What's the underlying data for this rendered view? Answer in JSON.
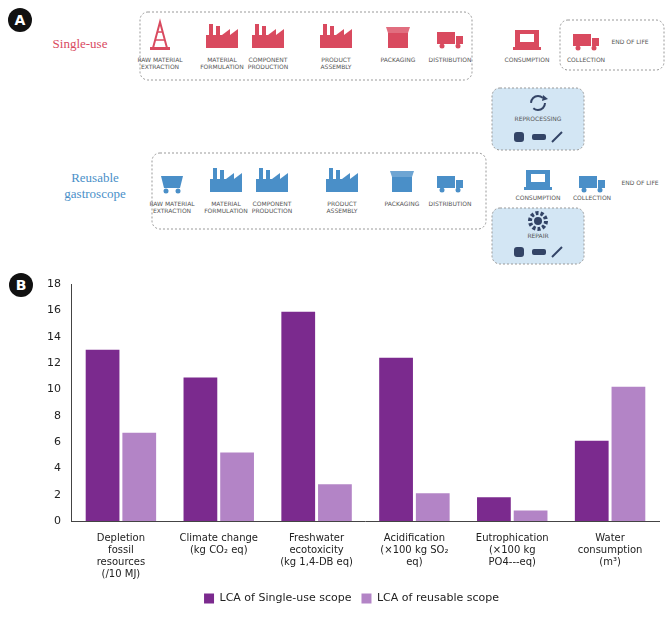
{
  "panel_labels": [
    "A",
    "B"
  ],
  "diagram": {
    "single_use": {
      "label": "Single-use",
      "stages": [
        "RAW MATERIAL EXTRACTION",
        "MATERIAL FORMULATION",
        "COMPONENT PRODUCTION",
        "PRODUCT ASSEMBLY",
        "PACKAGING",
        "DISTRIBUTION"
      ],
      "consumption": "CONSUMPTION",
      "collection": "COLLECTION",
      "end_of_life": "END OF LIFE"
    },
    "reusable": {
      "label": "Reusable gastroscope",
      "stages": [
        "RAW MATERIAL EXTRACTION",
        "MATERIAL FORMULATION",
        "COMPONENT PRODUCTION",
        "PRODUCT ASSEMBLY",
        "PACKAGING",
        "DISTRIBUTION"
      ],
      "reprocessing": "REPROCESSING",
      "repair": "REPAIR",
      "consumption": "CONSUMPTION",
      "collection": "COLLECTION",
      "end_of_life": "END OF LIFE"
    }
  },
  "chart_data": {
    "type": "bar",
    "categories": [
      "Depletion fossil resources (/10 MJ)",
      "Climate change (kg CO₂ eq)",
      "Freshwater ecotoxicity (kg 1,4-DB eq)",
      "Acidification (×100 kg SO₂ eq)",
      "Eutrophication (×100 kg PO4---eq)",
      "Water consumption (m³)"
    ],
    "series": [
      {
        "name": "LCA of Single-use scope",
        "color": "#7b2a8e",
        "values": [
          13,
          10.9,
          15.9,
          12.4,
          1.8,
          6.1
        ]
      },
      {
        "name": "LCA of reusable scope",
        "color": "#b384c6",
        "values": [
          6.7,
          5.2,
          2.8,
          2.1,
          0.8,
          10.2
        ]
      }
    ],
    "ylim": [
      0,
      18
    ],
    "yticks": [
      0,
      2,
      4,
      6,
      8,
      10,
      12,
      14,
      16,
      18
    ],
    "grid": false,
    "legend": "bottom"
  }
}
